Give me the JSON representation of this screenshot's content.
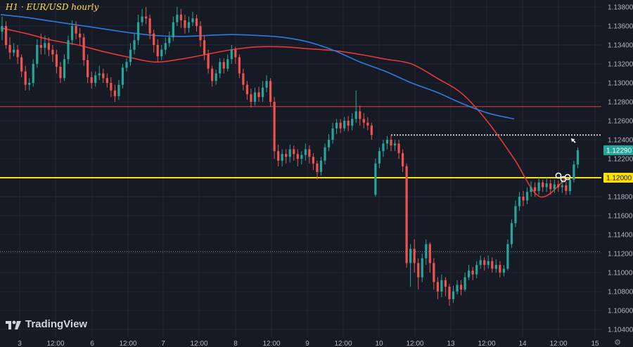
{
  "header": {
    "title": "H1 · EUR/USD hourly"
  },
  "branding": {
    "logo_text": "TradingView"
  },
  "icons": {
    "settings": "settings-gear-icon",
    "logo": "tradingview-logo-icon",
    "arrow": "arrow-pointer-icon"
  },
  "colors": {
    "background": "#161a25",
    "grid": "#232733",
    "up": "#26a69a",
    "down": "#ef5350",
    "ma_red": "#e53935",
    "ma_blue": "#2d7be0",
    "support": "#ffe100",
    "resistance_red": "#e04040",
    "dotted": "#c8cad0",
    "axis_text": "#b2b5be",
    "last_price_bg": "#26a69a",
    "level_bg": "#ffe100"
  },
  "chart_data": {
    "type": "candlestick",
    "symbol": "EUR/USD",
    "timeframe": "hourly",
    "ylim": [
      1.1035,
      1.1395
    ],
    "y_ticks": [
      "1.13800",
      "1.13600",
      "1.13400",
      "1.13200",
      "1.13000",
      "1.12800",
      "1.12600",
      "1.12400",
      "1.12200",
      "1.12000",
      "1.11800",
      "1.11600",
      "1.11400",
      "1.11200",
      "1.11000",
      "1.10800",
      "1.10600",
      "1.10400"
    ],
    "x_tick_labels": [
      "3",
      "12:00",
      "6",
      "12:00",
      "7",
      "12:00",
      "8",
      "12:00",
      "9",
      "12:00",
      "10",
      "12:00",
      "13",
      "12:00",
      "14",
      "12:00",
      "15"
    ],
    "last_price": "1.12290",
    "levels": [
      {
        "price": 1.12,
        "label": "1.12000",
        "style": "solid-thick",
        "color": "#ffe100"
      },
      {
        "price": 1.1275,
        "style": "thin",
        "color": "#e04040"
      },
      {
        "price": 1.1122,
        "style": "dotted-thin",
        "color": "#8a8f9c"
      },
      {
        "price": 1.1245,
        "style": "dotted-white",
        "start_day": "10",
        "color": "#c8cad0"
      }
    ],
    "moving_averages": [
      {
        "color": "red",
        "points": [
          [
            0,
            1.1358
          ],
          [
            2,
            1.1352
          ],
          [
            4,
            1.1345
          ],
          [
            6,
            1.134
          ],
          [
            8,
            1.1333
          ],
          [
            10,
            1.1327
          ],
          [
            12,
            1.1322
          ],
          [
            14,
            1.1325
          ],
          [
            16,
            1.133
          ],
          [
            18,
            1.1335
          ],
          [
            20,
            1.1338
          ],
          [
            22,
            1.1338
          ],
          [
            24,
            1.1336
          ],
          [
            26,
            1.1334
          ],
          [
            28,
            1.133
          ],
          [
            30,
            1.1325
          ],
          [
            32,
            1.132
          ],
          [
            34,
            1.1305
          ],
          [
            36,
            1.1288
          ],
          [
            38,
            1.1258
          ],
          [
            40,
            1.122
          ],
          [
            42,
            1.118
          ],
          [
            44,
            1.1199
          ]
        ]
      },
      {
        "color": "blue",
        "points": [
          [
            0,
            1.1372
          ],
          [
            2,
            1.1369
          ],
          [
            4,
            1.1365
          ],
          [
            6,
            1.1361
          ],
          [
            8,
            1.1357
          ],
          [
            10,
            1.1353
          ],
          [
            12,
            1.135
          ],
          [
            14,
            1.1349
          ],
          [
            16,
            1.135
          ],
          [
            18,
            1.1351
          ],
          [
            20,
            1.135
          ],
          [
            22,
            1.1348
          ],
          [
            24,
            1.1343
          ],
          [
            26,
            1.1334
          ],
          [
            28,
            1.1322
          ],
          [
            30,
            1.1312
          ],
          [
            32,
            1.13
          ],
          [
            34,
            1.129
          ],
          [
            36,
            1.1278
          ],
          [
            38,
            1.1268
          ],
          [
            40,
            1.1262
          ]
        ]
      }
    ],
    "candles": [
      [
        1.1354,
        1.136,
        1.137,
        1.1345
      ],
      [
        1.136,
        1.134,
        1.1365,
        1.1336
      ],
      [
        1.134,
        1.1332,
        1.1348,
        1.1325
      ],
      [
        1.1332,
        1.1335,
        1.1342,
        1.1328
      ],
      [
        1.1335,
        1.1327,
        1.134,
        1.132
      ],
      [
        1.1327,
        1.1312,
        1.133,
        1.1306
      ],
      [
        1.1312,
        1.1298,
        1.1318,
        1.1292
      ],
      [
        1.1298,
        1.13,
        1.1305,
        1.1292
      ],
      [
        1.13,
        1.132,
        1.1325,
        1.1296
      ],
      [
        1.132,
        1.134,
        1.1346,
        1.1316
      ],
      [
        1.134,
        1.1337,
        1.1352,
        1.133
      ],
      [
        1.1337,
        1.1342,
        1.135,
        1.133
      ],
      [
        1.1342,
        1.1335,
        1.1348,
        1.1328
      ],
      [
        1.1335,
        1.133,
        1.134,
        1.1322
      ],
      [
        1.133,
        1.1317,
        1.1335,
        1.131
      ],
      [
        1.1317,
        1.1305,
        1.1322,
        1.13
      ],
      [
        1.1305,
        1.1325,
        1.133,
        1.1302
      ],
      [
        1.1325,
        1.1345,
        1.135,
        1.132
      ],
      [
        1.1345,
        1.136,
        1.1366,
        1.134
      ],
      [
        1.136,
        1.1352,
        1.1365,
        1.1346
      ],
      [
        1.1352,
        1.1348,
        1.1358,
        1.134
      ],
      [
        1.1348,
        1.1324,
        1.1352,
        1.1318
      ],
      [
        1.1324,
        1.1306,
        1.133,
        1.13
      ],
      [
        1.1306,
        1.13,
        1.1312,
        1.1294
      ],
      [
        1.13,
        1.1308,
        1.1312,
        1.1296
      ],
      [
        1.1308,
        1.131,
        1.1318,
        1.1303
      ],
      [
        1.131,
        1.1305,
        1.1315,
        1.13
      ],
      [
        1.1305,
        1.13,
        1.131,
        1.1295
      ],
      [
        1.13,
        1.1292,
        1.1306,
        1.1285
      ],
      [
        1.1292,
        1.1286,
        1.1298,
        1.128
      ],
      [
        1.1286,
        1.1298,
        1.1303,
        1.1282
      ],
      [
        1.1298,
        1.1316,
        1.132,
        1.1294
      ],
      [
        1.1316,
        1.1322,
        1.1326,
        1.1312
      ],
      [
        1.1322,
        1.1335,
        1.1342,
        1.1318
      ],
      [
        1.1335,
        1.1345,
        1.1352,
        1.133
      ],
      [
        1.1345,
        1.1364,
        1.1372,
        1.134
      ],
      [
        1.1364,
        1.137,
        1.1378,
        1.136
      ],
      [
        1.137,
        1.1368,
        1.138,
        1.1362
      ],
      [
        1.1368,
        1.1352,
        1.1372,
        1.1346
      ],
      [
        1.1352,
        1.134,
        1.1356,
        1.1332
      ],
      [
        1.134,
        1.1328,
        1.1346,
        1.1322
      ],
      [
        1.1328,
        1.1335,
        1.134,
        1.1324
      ],
      [
        1.1335,
        1.1342,
        1.1348,
        1.133
      ],
      [
        1.1342,
        1.1348,
        1.1354,
        1.1338
      ],
      [
        1.1348,
        1.1364,
        1.137,
        1.1344
      ],
      [
        1.1364,
        1.1372,
        1.138,
        1.136
      ],
      [
        1.1372,
        1.1366,
        1.1378,
        1.1358
      ],
      [
        1.1366,
        1.1358,
        1.1372,
        1.1352
      ],
      [
        1.1358,
        1.1364,
        1.137,
        1.1353
      ],
      [
        1.1364,
        1.1368,
        1.1375,
        1.136
      ],
      [
        1.1368,
        1.136,
        1.1372,
        1.1354
      ],
      [
        1.136,
        1.1345,
        1.1365,
        1.1338
      ],
      [
        1.1345,
        1.133,
        1.135,
        1.1324
      ],
      [
        1.133,
        1.1315,
        1.1335,
        1.131
      ],
      [
        1.1315,
        1.1302,
        1.1318,
        1.1296
      ],
      [
        1.1302,
        1.131,
        1.1314,
        1.1298
      ],
      [
        1.131,
        1.1322,
        1.1326,
        1.1305
      ],
      [
        1.1322,
        1.1315,
        1.1326,
        1.131
      ],
      [
        1.1315,
        1.1325,
        1.133,
        1.1312
      ],
      [
        1.1325,
        1.1335,
        1.134,
        1.132
      ],
      [
        1.1335,
        1.1327,
        1.1338,
        1.132
      ],
      [
        1.1327,
        1.131,
        1.133,
        1.1305
      ],
      [
        1.131,
        1.1298,
        1.1315,
        1.1292
      ],
      [
        1.1298,
        1.1288,
        1.1302,
        1.1282
      ],
      [
        1.1288,
        1.128,
        1.1294,
        1.1274
      ],
      [
        1.128,
        1.129,
        1.1295,
        1.1276
      ],
      [
        1.129,
        1.1285,
        1.1296,
        1.128
      ],
      [
        1.1285,
        1.1295,
        1.1302,
        1.128
      ],
      [
        1.1295,
        1.1302,
        1.1308,
        1.129
      ],
      [
        1.1302,
        1.128,
        1.1305,
        1.1275
      ],
      [
        1.128,
        1.1228,
        1.1285,
        1.122
      ],
      [
        1.1228,
        1.1218,
        1.1235,
        1.1212
      ],
      [
        1.1218,
        1.1225,
        1.123,
        1.1212
      ],
      [
        1.1225,
        1.1222,
        1.123,
        1.1215
      ],
      [
        1.1222,
        1.123,
        1.1235,
        1.1216
      ],
      [
        1.123,
        1.1225,
        1.1234,
        1.1218
      ],
      [
        1.1225,
        1.122,
        1.123,
        1.1212
      ],
      [
        1.122,
        1.1224,
        1.1228,
        1.1214
      ],
      [
        1.1224,
        1.123,
        1.1236,
        1.1218
      ],
      [
        1.123,
        1.1222,
        1.1234,
        1.1215
      ],
      [
        1.1222,
        1.1215,
        1.1226,
        1.1208
      ],
      [
        1.1215,
        1.1206,
        1.1218,
        1.1198
      ],
      [
        1.1206,
        1.1218,
        1.1222,
        1.1202
      ],
      [
        1.1218,
        1.1232,
        1.1236,
        1.1214
      ],
      [
        1.1232,
        1.124,
        1.1246,
        1.1228
      ],
      [
        1.124,
        1.1252,
        1.1258,
        1.1236
      ],
      [
        1.1252,
        1.1258,
        1.1262,
        1.1246
      ],
      [
        1.1258,
        1.1252,
        1.1262,
        1.1247
      ],
      [
        1.1252,
        1.126,
        1.1264,
        1.1249
      ],
      [
        1.126,
        1.1255,
        1.1265,
        1.1249
      ],
      [
        1.1255,
        1.1262,
        1.1268,
        1.125
      ],
      [
        1.1262,
        1.127,
        1.1292,
        1.1258
      ],
      [
        1.127,
        1.1262,
        1.1276,
        1.1255
      ],
      [
        1.1262,
        1.1258,
        1.1268,
        1.1252
      ],
      [
        1.1258,
        1.1255,
        1.1264,
        1.125
      ],
      [
        1.1255,
        1.1245,
        1.1258,
        1.124
      ],
      [
        1.1182,
        1.1215,
        1.122,
        1.118
      ],
      [
        1.1215,
        1.1228,
        1.1232,
        1.121
      ],
      [
        1.1228,
        1.1236,
        1.124,
        1.1222
      ],
      [
        1.1236,
        1.124,
        1.1244,
        1.123
      ],
      [
        1.124,
        1.1234,
        1.1245,
        1.1228
      ],
      [
        1.1234,
        1.1236,
        1.124,
        1.1228
      ],
      [
        1.1236,
        1.1226,
        1.124,
        1.122
      ],
      [
        1.1226,
        1.1212,
        1.123,
        1.1206
      ],
      [
        1.1212,
        1.111,
        1.1215,
        1.1105
      ],
      [
        1.111,
        1.1125,
        1.113,
        1.1085
      ],
      [
        1.1125,
        1.111,
        1.1135,
        1.11
      ],
      [
        1.111,
        1.1095,
        1.1115,
        1.1082
      ],
      [
        1.1095,
        1.1115,
        1.112,
        1.109
      ],
      [
        1.1115,
        1.113,
        1.1135,
        1.1108
      ],
      [
        1.113,
        1.111,
        1.1132,
        1.11
      ],
      [
        1.111,
        1.109,
        1.1115,
        1.1082
      ],
      [
        1.109,
        1.108,
        1.1095,
        1.1072
      ],
      [
        1.108,
        1.1092,
        1.1098,
        1.1074
      ],
      [
        1.1092,
        1.1085,
        1.1095,
        1.1075
      ],
      [
        1.1085,
        1.1072,
        1.1088,
        1.1065
      ],
      [
        1.1072,
        1.108,
        1.1086,
        1.1068
      ],
      [
        1.108,
        1.1087,
        1.1092,
        1.1077
      ],
      [
        1.1087,
        1.1082,
        1.1092,
        1.1076
      ],
      [
        1.1082,
        1.1095,
        1.11,
        1.108
      ],
      [
        1.1095,
        1.1102,
        1.1108,
        1.1092
      ],
      [
        1.1102,
        1.1098,
        1.1106,
        1.1092
      ],
      [
        1.1098,
        1.1108,
        1.1112,
        1.1094
      ],
      [
        1.1108,
        1.1113,
        1.1118,
        1.1104
      ],
      [
        1.1113,
        1.1108,
        1.1116,
        1.1102
      ],
      [
        1.1108,
        1.1112,
        1.1118,
        1.1104
      ],
      [
        1.1112,
        1.1104,
        1.1116,
        1.11
      ],
      [
        1.1104,
        1.1108,
        1.1114,
        1.11
      ],
      [
        1.1108,
        1.11,
        1.1112,
        1.1095
      ],
      [
        1.11,
        1.1104,
        1.1108,
        1.1096
      ],
      [
        1.1104,
        1.113,
        1.1135,
        1.1102
      ],
      [
        1.113,
        1.1152,
        1.1156,
        1.1126
      ],
      [
        1.1152,
        1.117,
        1.1176,
        1.1148
      ],
      [
        1.117,
        1.118,
        1.1185,
        1.1165
      ],
      [
        1.118,
        1.1176,
        1.1186,
        1.117
      ],
      [
        1.1176,
        1.1185,
        1.119,
        1.1172
      ],
      [
        1.1185,
        1.119,
        1.1196,
        1.118
      ],
      [
        1.119,
        1.1186,
        1.1195,
        1.118
      ],
      [
        1.1186,
        1.1195,
        1.12,
        1.1182
      ],
      [
        1.1195,
        1.119,
        1.1198,
        1.1185
      ],
      [
        1.119,
        1.1194,
        1.12,
        1.1185
      ],
      [
        1.1194,
        1.1188,
        1.1198,
        1.1182
      ],
      [
        1.1188,
        1.1193,
        1.1198,
        1.1184
      ],
      [
        1.1193,
        1.119,
        1.1197,
        1.1185
      ],
      [
        1.119,
        1.1192,
        1.1198,
        1.1184
      ],
      [
        1.1192,
        1.1186,
        1.1196,
        1.1182
      ],
      [
        1.1186,
        1.1198,
        1.1202,
        1.1182
      ],
      [
        1.1198,
        1.1214,
        1.1218,
        1.1195
      ],
      [
        1.1214,
        1.1229,
        1.1232,
        1.121
      ]
    ]
  }
}
